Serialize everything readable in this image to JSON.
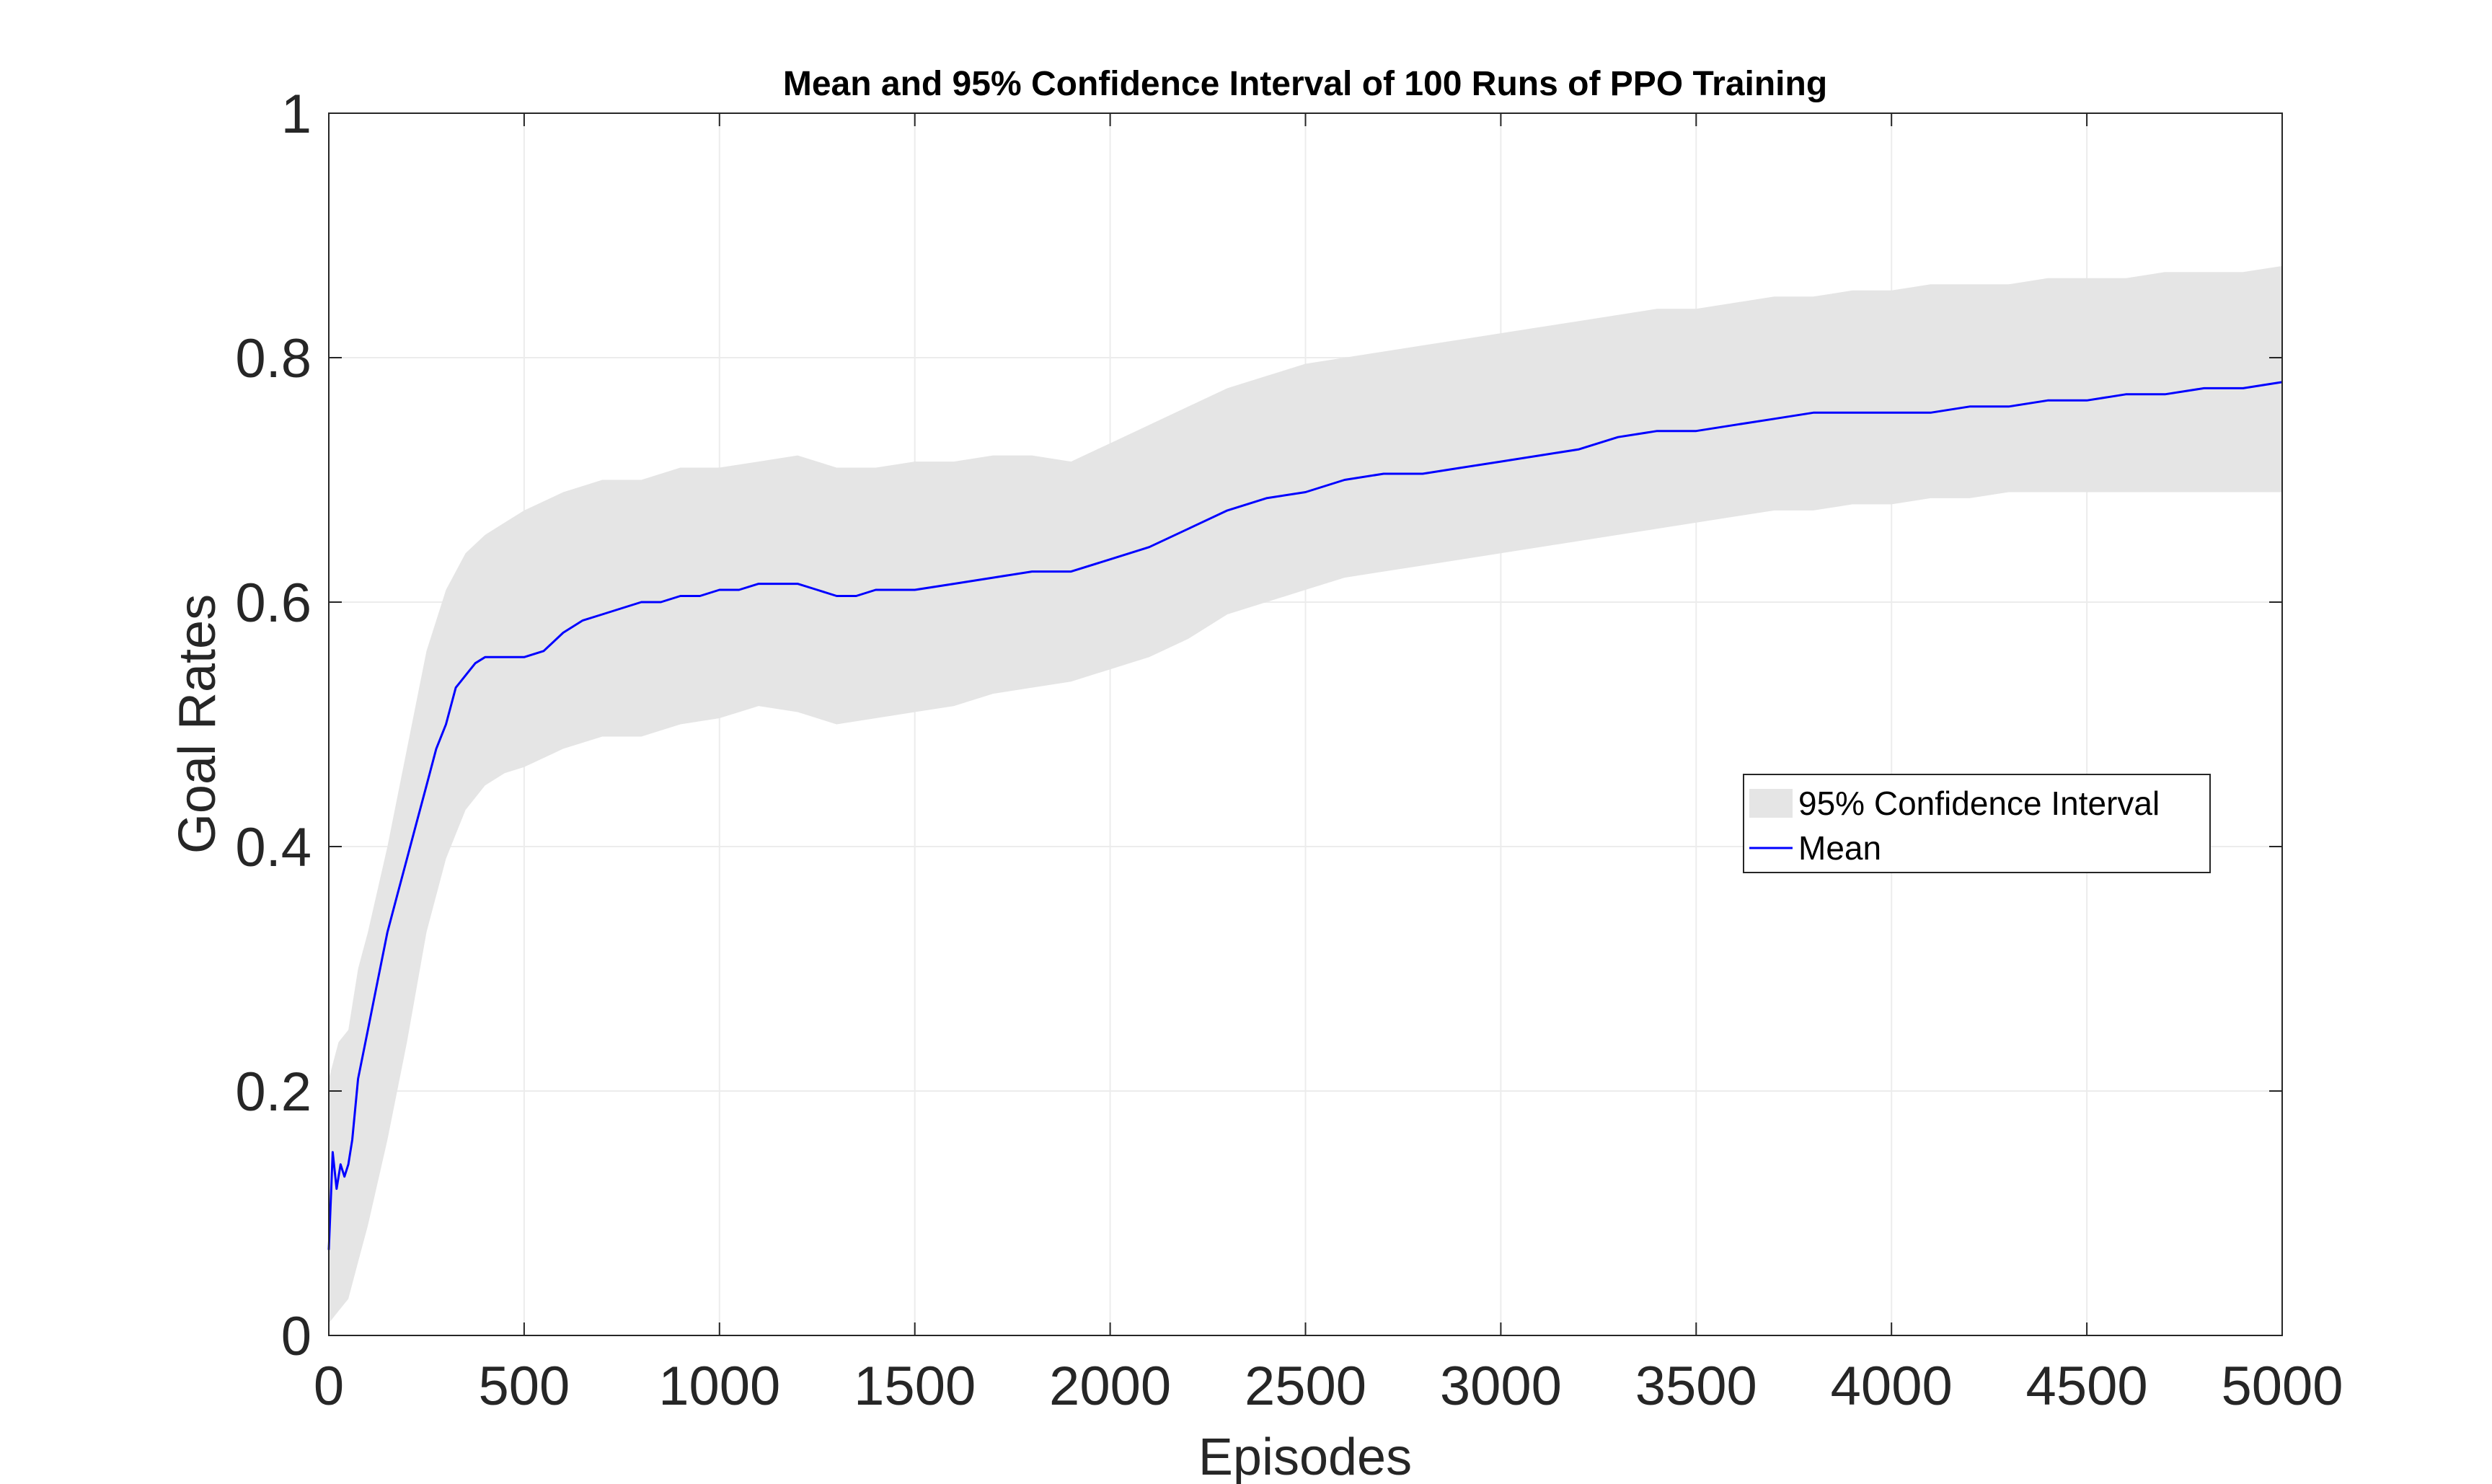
{
  "chart_data": {
    "type": "line",
    "title": "Mean and 95% Confidence Interval of 100 Runs of PPO Training",
    "xlabel": "Episodes",
    "ylabel": "Goal Rates",
    "xlim": [
      0,
      5000
    ],
    "ylim": [
      0,
      1
    ],
    "xticks": [
      0,
      500,
      1000,
      1500,
      2000,
      2500,
      3000,
      3500,
      4000,
      4500,
      5000
    ],
    "yticks": [
      0,
      0.2,
      0.4,
      0.6,
      0.8,
      1
    ],
    "xtick_labels": [
      "0",
      "500",
      "1000",
      "1500",
      "2000",
      "2500",
      "3000",
      "3500",
      "4000",
      "4500",
      "5000"
    ],
    "ytick_labels": [
      "0",
      "0.2",
      "0.4",
      "0.6",
      "0.8",
      "1"
    ],
    "grid": true,
    "legend_position": "right",
    "series": [
      {
        "name": "95% Confidence Interval",
        "kind": "band",
        "color": "#e5e5e5",
        "x": [
          0,
          25,
          50,
          75,
          100,
          150,
          200,
          250,
          300,
          350,
          400,
          450,
          500,
          600,
          700,
          800,
          900,
          1000,
          1100,
          1200,
          1300,
          1400,
          1500,
          1600,
          1700,
          1800,
          1900,
          2000,
          2100,
          2200,
          2300,
          2400,
          2500,
          2600,
          2700,
          2800,
          2900,
          3000,
          3100,
          3200,
          3300,
          3400,
          3500,
          3600,
          3700,
          3800,
          3900,
          4000,
          4100,
          4200,
          4300,
          4400,
          4500,
          4600,
          4700,
          4800,
          4900,
          5000
        ],
        "upper": [
          0.21,
          0.24,
          0.25,
          0.3,
          0.33,
          0.4,
          0.48,
          0.56,
          0.61,
          0.64,
          0.655,
          0.665,
          0.675,
          0.69,
          0.7,
          0.7,
          0.71,
          0.71,
          0.715,
          0.72,
          0.71,
          0.71,
          0.715,
          0.715,
          0.72,
          0.72,
          0.715,
          0.73,
          0.745,
          0.76,
          0.775,
          0.785,
          0.795,
          0.8,
          0.805,
          0.81,
          0.815,
          0.82,
          0.825,
          0.83,
          0.835,
          0.84,
          0.84,
          0.845,
          0.85,
          0.85,
          0.855,
          0.855,
          0.86,
          0.86,
          0.86,
          0.865,
          0.865,
          0.865,
          0.87,
          0.87,
          0.87,
          0.875
        ],
        "lower": [
          0.01,
          0.02,
          0.03,
          0.06,
          0.09,
          0.16,
          0.24,
          0.33,
          0.39,
          0.43,
          0.45,
          0.46,
          0.465,
          0.48,
          0.49,
          0.49,
          0.5,
          0.505,
          0.515,
          0.51,
          0.5,
          0.505,
          0.51,
          0.515,
          0.525,
          0.53,
          0.535,
          0.545,
          0.555,
          0.57,
          0.59,
          0.6,
          0.61,
          0.62,
          0.625,
          0.63,
          0.635,
          0.64,
          0.645,
          0.65,
          0.655,
          0.66,
          0.665,
          0.67,
          0.675,
          0.675,
          0.68,
          0.68,
          0.685,
          0.685,
          0.69,
          0.69,
          0.69,
          0.69,
          0.69,
          0.69,
          0.69,
          0.69
        ]
      },
      {
        "name": "Mean",
        "kind": "line",
        "color": "#0000ff",
        "x": [
          0,
          10,
          20,
          30,
          40,
          50,
          60,
          75,
          100,
          125,
          150,
          175,
          200,
          225,
          250,
          275,
          300,
          325,
          350,
          375,
          400,
          450,
          500,
          550,
          600,
          650,
          700,
          750,
          800,
          850,
          900,
          950,
          1000,
          1050,
          1100,
          1150,
          1200,
          1250,
          1300,
          1350,
          1400,
          1500,
          1600,
          1700,
          1800,
          1900,
          2000,
          2100,
          2200,
          2300,
          2400,
          2500,
          2600,
          2700,
          2800,
          2900,
          3000,
          3100,
          3200,
          3300,
          3400,
          3500,
          3600,
          3700,
          3800,
          3900,
          4000,
          4100,
          4200,
          4300,
          4400,
          4500,
          4600,
          4700,
          4800,
          4900,
          5000
        ],
        "y": [
          0.07,
          0.15,
          0.12,
          0.14,
          0.13,
          0.14,
          0.16,
          0.21,
          0.25,
          0.29,
          0.33,
          0.36,
          0.39,
          0.42,
          0.45,
          0.48,
          0.5,
          0.53,
          0.54,
          0.55,
          0.555,
          0.555,
          0.555,
          0.56,
          0.575,
          0.585,
          0.59,
          0.595,
          0.6,
          0.6,
          0.605,
          0.605,
          0.61,
          0.61,
          0.615,
          0.615,
          0.615,
          0.61,
          0.605,
          0.605,
          0.61,
          0.61,
          0.615,
          0.62,
          0.625,
          0.625,
          0.635,
          0.645,
          0.66,
          0.675,
          0.685,
          0.69,
          0.7,
          0.705,
          0.705,
          0.71,
          0.715,
          0.72,
          0.725,
          0.735,
          0.74,
          0.74,
          0.745,
          0.75,
          0.755,
          0.755,
          0.755,
          0.755,
          0.76,
          0.76,
          0.765,
          0.765,
          0.77,
          0.77,
          0.775,
          0.775,
          0.78
        ]
      }
    ]
  }
}
